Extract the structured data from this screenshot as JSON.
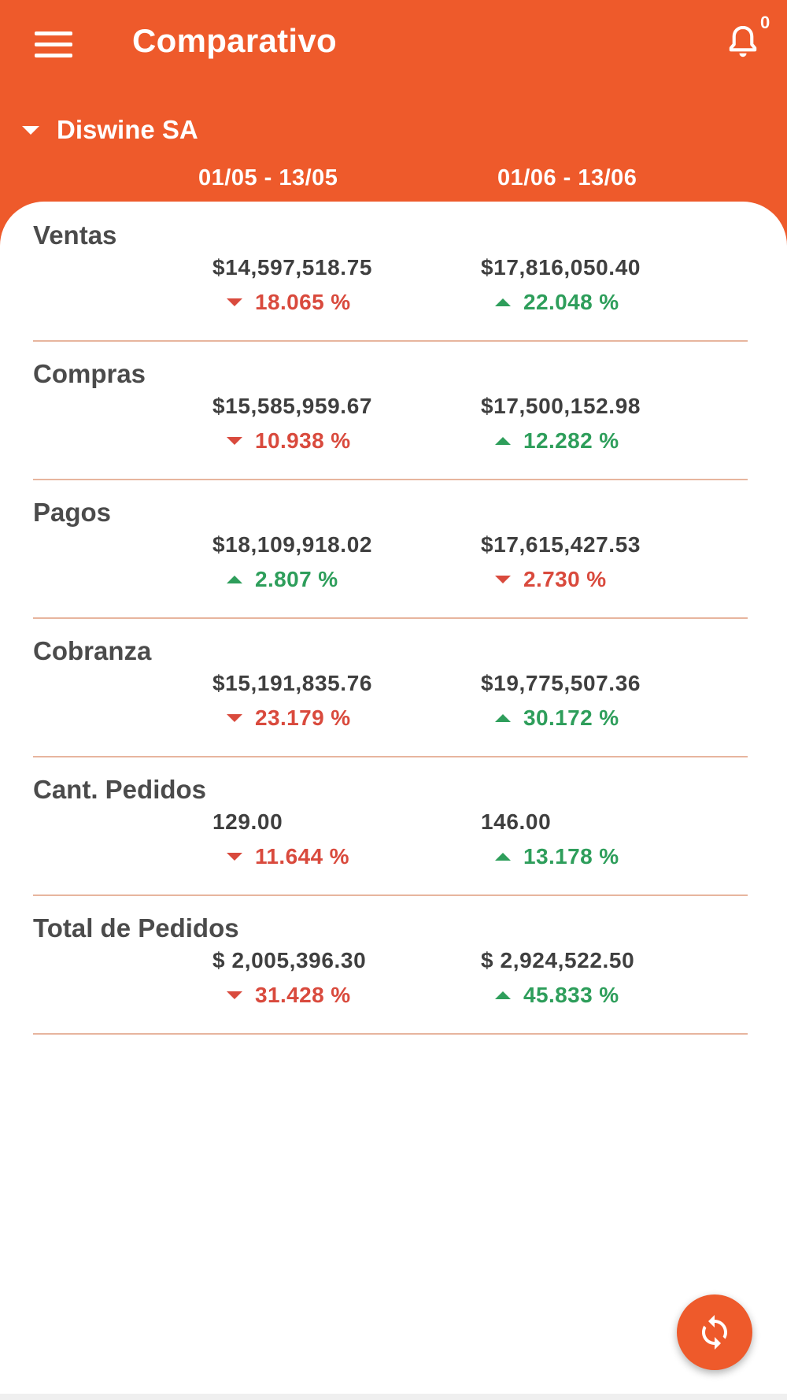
{
  "app": {
    "title": "Comparativo",
    "notification_count": "0",
    "accent_color": "#EE5A2B"
  },
  "filter": {
    "company": "Diswine SA",
    "periods": [
      "01/05 - 13/05",
      "01/06 - 13/06"
    ]
  },
  "metrics": [
    {
      "name": "Ventas",
      "values": [
        {
          "amount": "$14,597,518.75",
          "change": "18.065 %",
          "direction": "down"
        },
        {
          "amount": "$17,816,050.40",
          "change": "22.048 %",
          "direction": "up"
        }
      ]
    },
    {
      "name": "Compras",
      "values": [
        {
          "amount": "$15,585,959.67",
          "change": "10.938 %",
          "direction": "down"
        },
        {
          "amount": "$17,500,152.98",
          "change": "12.282 %",
          "direction": "up"
        }
      ]
    },
    {
      "name": "Pagos",
      "values": [
        {
          "amount": "$18,109,918.02",
          "change": "2.807 %",
          "direction": "up"
        },
        {
          "amount": "$17,615,427.53",
          "change": "2.730 %",
          "direction": "down"
        }
      ]
    },
    {
      "name": "Cobranza",
      "values": [
        {
          "amount": "$15,191,835.76",
          "change": "23.179 %",
          "direction": "down"
        },
        {
          "amount": "$19,775,507.36",
          "change": "30.172 %",
          "direction": "up"
        }
      ]
    },
    {
      "name": "Cant. Pedidos",
      "values": [
        {
          "amount": "129.00",
          "change": "11.644 %",
          "direction": "down"
        },
        {
          "amount": "146.00",
          "change": "13.178 %",
          "direction": "up"
        }
      ]
    },
    {
      "name": "Total de Pedidos",
      "values": [
        {
          "amount": "$ 2,005,396.30",
          "change": "31.428 %",
          "direction": "down"
        },
        {
          "amount": "$ 2,924,522.50",
          "change": "45.833 %",
          "direction": "up"
        }
      ]
    }
  ],
  "icons": {
    "menu": "menu-icon",
    "notifications": "bell-icon",
    "company_dropdown": "caret-down-icon",
    "refresh": "refresh-icon"
  },
  "colors": {
    "increase": "#2E9E5B",
    "decrease": "#D94A3D",
    "divider": "#E7B59E"
  }
}
